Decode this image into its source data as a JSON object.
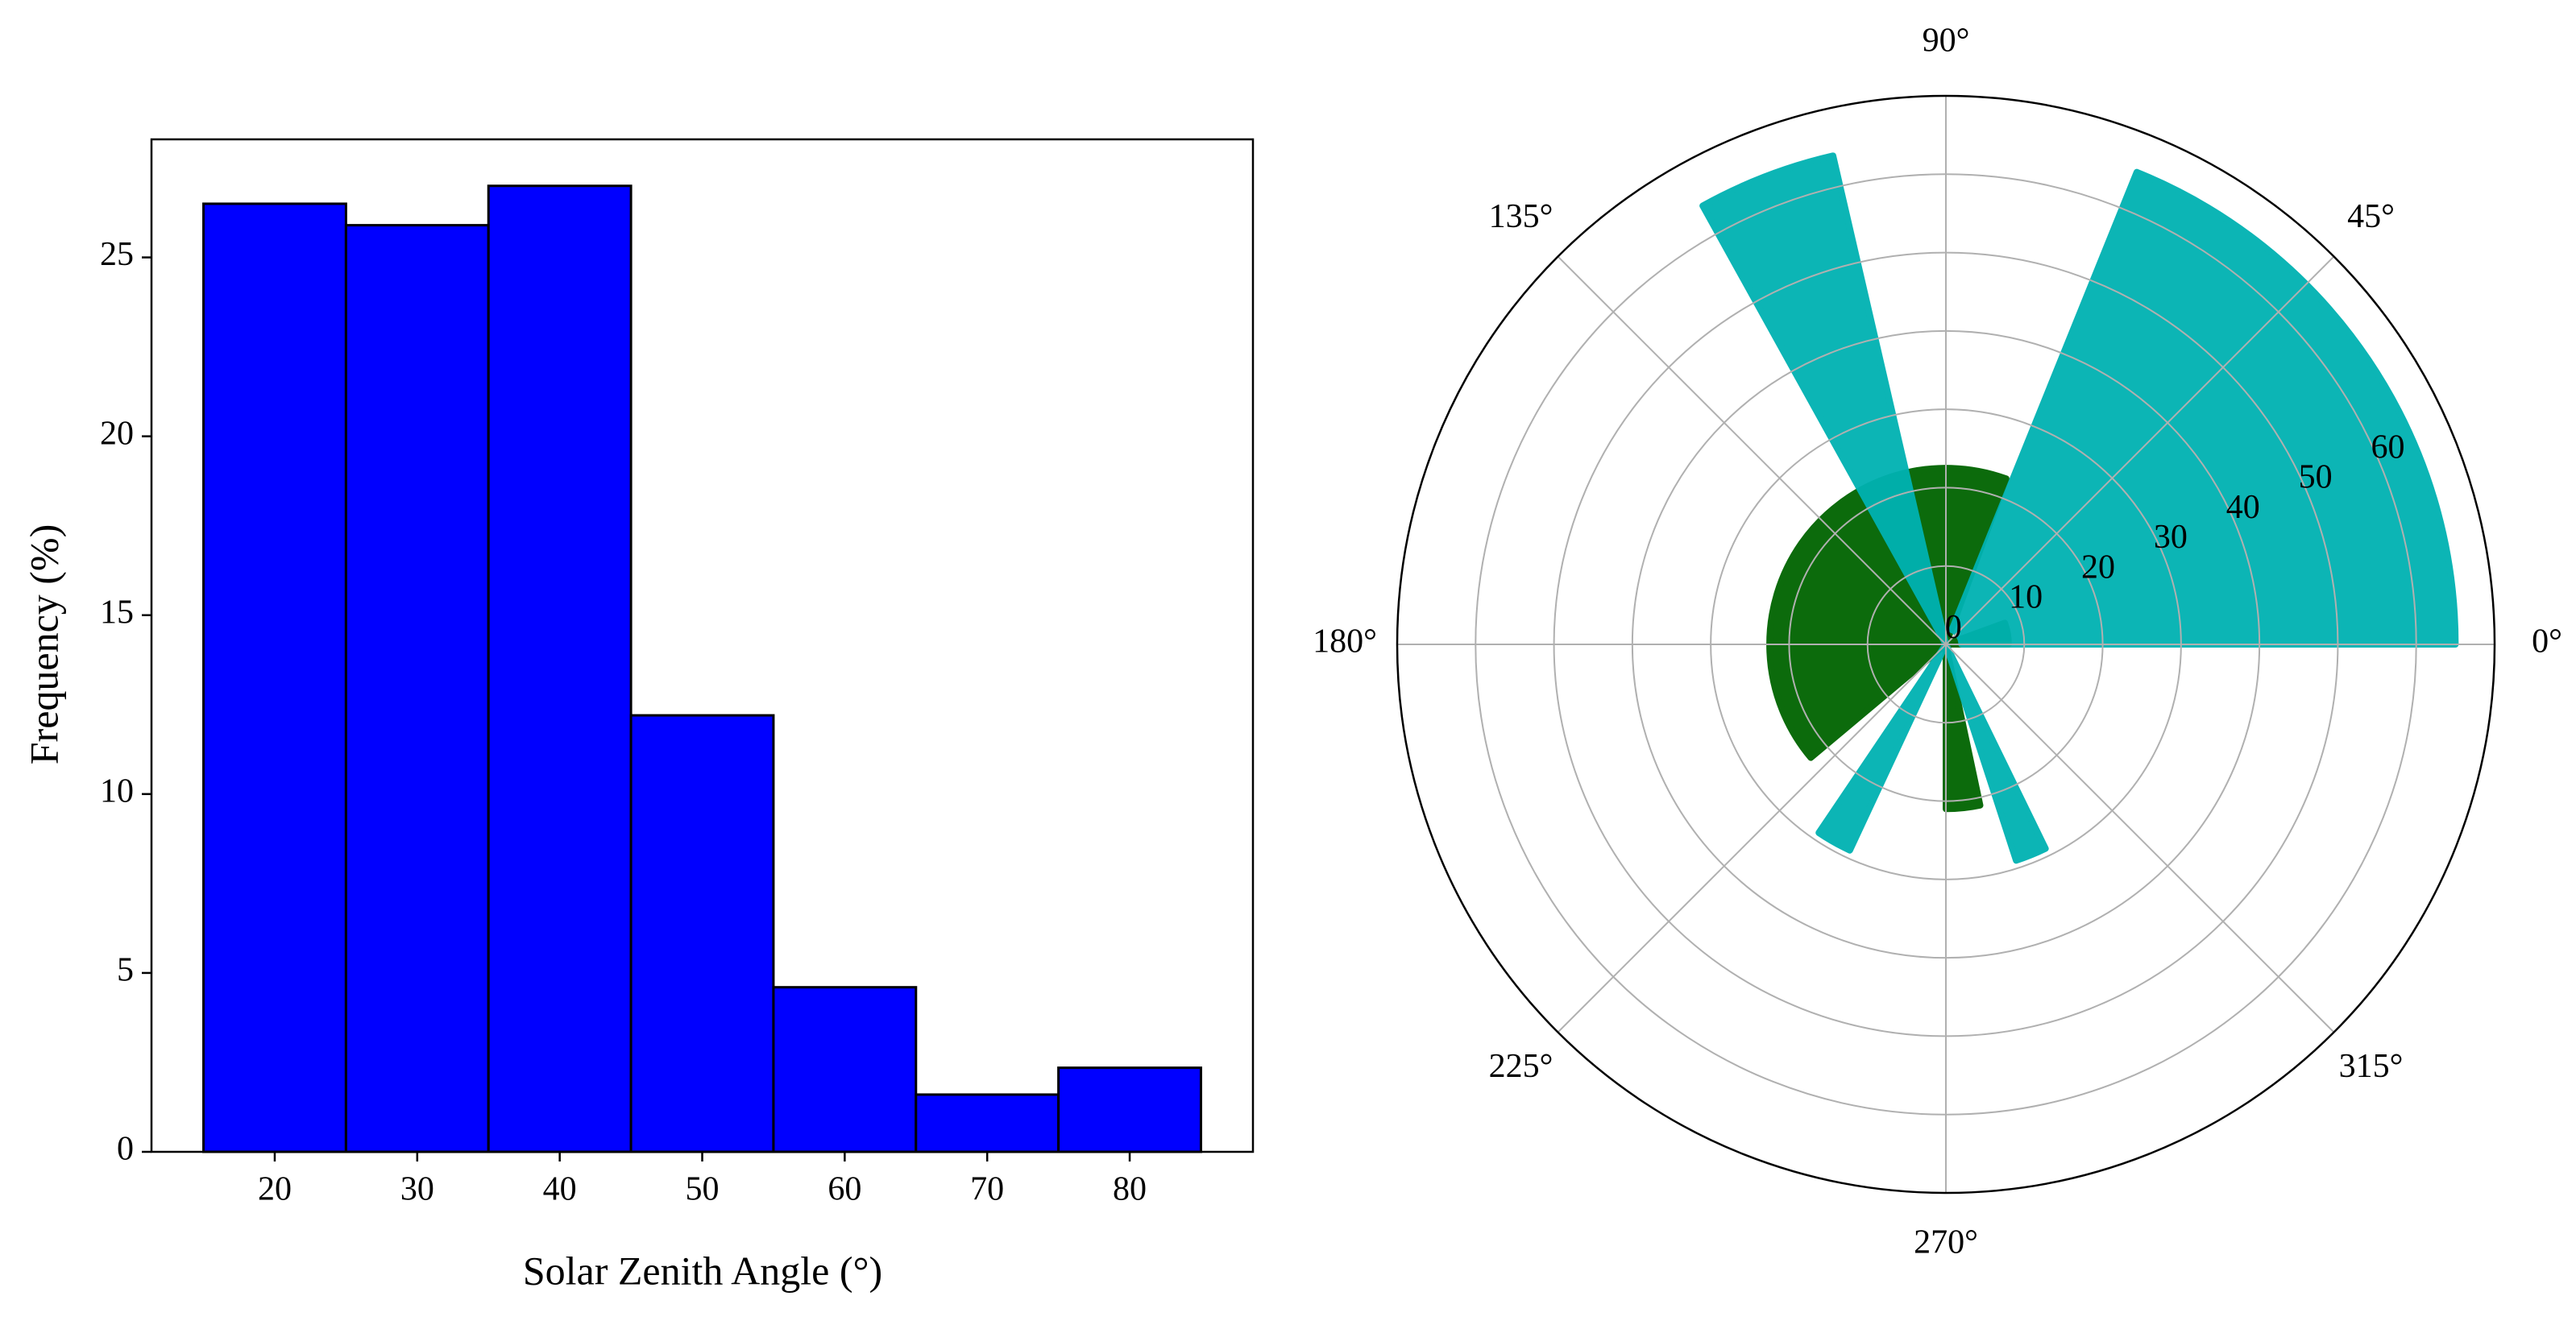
{
  "chart_data": [
    {
      "type": "histogram",
      "bins": [
        15,
        25,
        35,
        45,
        55,
        65,
        75,
        85
      ],
      "values": [
        26.5,
        25.9,
        27.0,
        12.2,
        4.6,
        1.6,
        2.35
      ],
      "color": "#0000ff",
      "xlabel": "Solar Zenith Angle (°)",
      "ylabel": "Frequency (%)",
      "xlim": [
        11.35,
        88.65
      ],
      "xticks": [
        20,
        30,
        40,
        50,
        60,
        70,
        80
      ],
      "ylim": [
        0,
        28.3
      ],
      "yticks": [
        0,
        5,
        10,
        15,
        20,
        25
      ]
    },
    {
      "type": "polar",
      "rlim": [
        0,
        70
      ],
      "rticks": [
        0,
        10,
        20,
        30,
        40,
        50,
        60
      ],
      "thetaticks": [
        {
          "value": 0,
          "label": "0°"
        },
        {
          "value": 45,
          "label": "45°"
        },
        {
          "value": 90,
          "label": "90°"
        },
        {
          "value": 135,
          "label": "135°"
        },
        {
          "value": 180,
          "label": "180°"
        },
        {
          "value": 225,
          "label": "225°"
        },
        {
          "value": 270,
          "label": "270°"
        },
        {
          "value": 315,
          "label": "315°"
        }
      ],
      "grid": true,
      "series": [
        {
          "color": "#006400",
          "sectors": [
            {
              "theta": [
                70,
                220
              ],
              "r": [
                0,
                22.5
              ]
            },
            {
              "theta": [
                0,
                20
              ],
              "r": [
                0,
                8
              ]
            },
            {
              "theta": [
                270,
                282
              ],
              "r": [
                0,
                21
              ]
            }
          ]
        },
        {
          "color": "#00b2b2",
          "sectors": [
            {
              "theta": [
                0,
                68
              ],
              "r": [
                2,
                65
              ]
            },
            {
              "theta": [
                103,
                119
              ],
              "r": [
                0,
                64
              ]
            },
            {
              "theta": [
                236,
                245
              ],
              "r": [
                0,
                29
              ]
            },
            {
              "theta": [
                288,
                296
              ],
              "r": [
                0,
                29
              ]
            }
          ]
        }
      ]
    }
  ]
}
